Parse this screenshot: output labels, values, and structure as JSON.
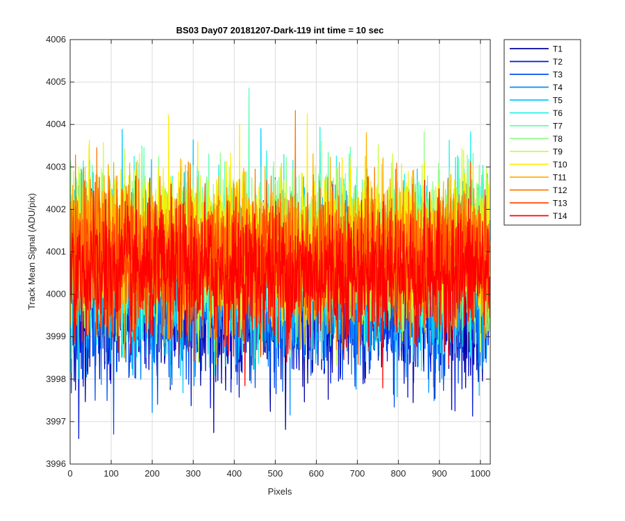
{
  "figure": {
    "title": "BS03 Day07 20181207-Dark-119 int time = 10 sec"
  },
  "chart_data": {
    "type": "line",
    "title": "BS03 Day07 20181207-Dark-119 int time = 10 sec",
    "xlabel": "Pixels",
    "ylabel": "Track Mean Signal (ADU/pix)",
    "xlim": [
      0,
      1024
    ],
    "ylim": [
      3996,
      4006
    ],
    "xticks": [
      0,
      100,
      200,
      300,
      400,
      500,
      600,
      700,
      800,
      900,
      1000
    ],
    "yticks": [
      3996,
      3997,
      3998,
      3999,
      4000,
      4001,
      4002,
      4003,
      4004,
      4005,
      4006
    ],
    "grid": true,
    "legend_position": "outside-right",
    "n_points": 1024,
    "series": [
      {
        "name": "T1",
        "color": "#0000a6",
        "mean": 3999.7,
        "sd": 0.85
      },
      {
        "name": "T2",
        "color": "#0012d8",
        "mean": 3999.8,
        "sd": 0.85
      },
      {
        "name": "T3",
        "color": "#0050f0",
        "mean": 3999.9,
        "sd": 0.85
      },
      {
        "name": "T4",
        "color": "#008cff",
        "mean": 4000.2,
        "sd": 0.9
      },
      {
        "name": "T5",
        "color": "#00c8ff",
        "mean": 4000.5,
        "sd": 0.95
      },
      {
        "name": "T6",
        "color": "#1ef2e6",
        "mean": 4000.8,
        "sd": 0.95
      },
      {
        "name": "T7",
        "color": "#5cffb0",
        "mean": 4001.0,
        "sd": 0.9
      },
      {
        "name": "T8",
        "color": "#8cff80",
        "mean": 4001.1,
        "sd": 0.9
      },
      {
        "name": "T9",
        "color": "#c8ff3c",
        "mean": 4001.2,
        "sd": 0.85
      },
      {
        "name": "T10",
        "color": "#ffee00",
        "mean": 4001.2,
        "sd": 0.85
      },
      {
        "name": "T11",
        "color": "#ffb000",
        "mean": 4001.0,
        "sd": 0.85
      },
      {
        "name": "T12",
        "color": "#ff7800",
        "mean": 4000.9,
        "sd": 0.8
      },
      {
        "name": "T13",
        "color": "#ff4a00",
        "mean": 4000.7,
        "sd": 0.8
      },
      {
        "name": "T14",
        "color": "#ff0000",
        "mean": 4000.5,
        "sd": 0.8
      }
    ]
  }
}
